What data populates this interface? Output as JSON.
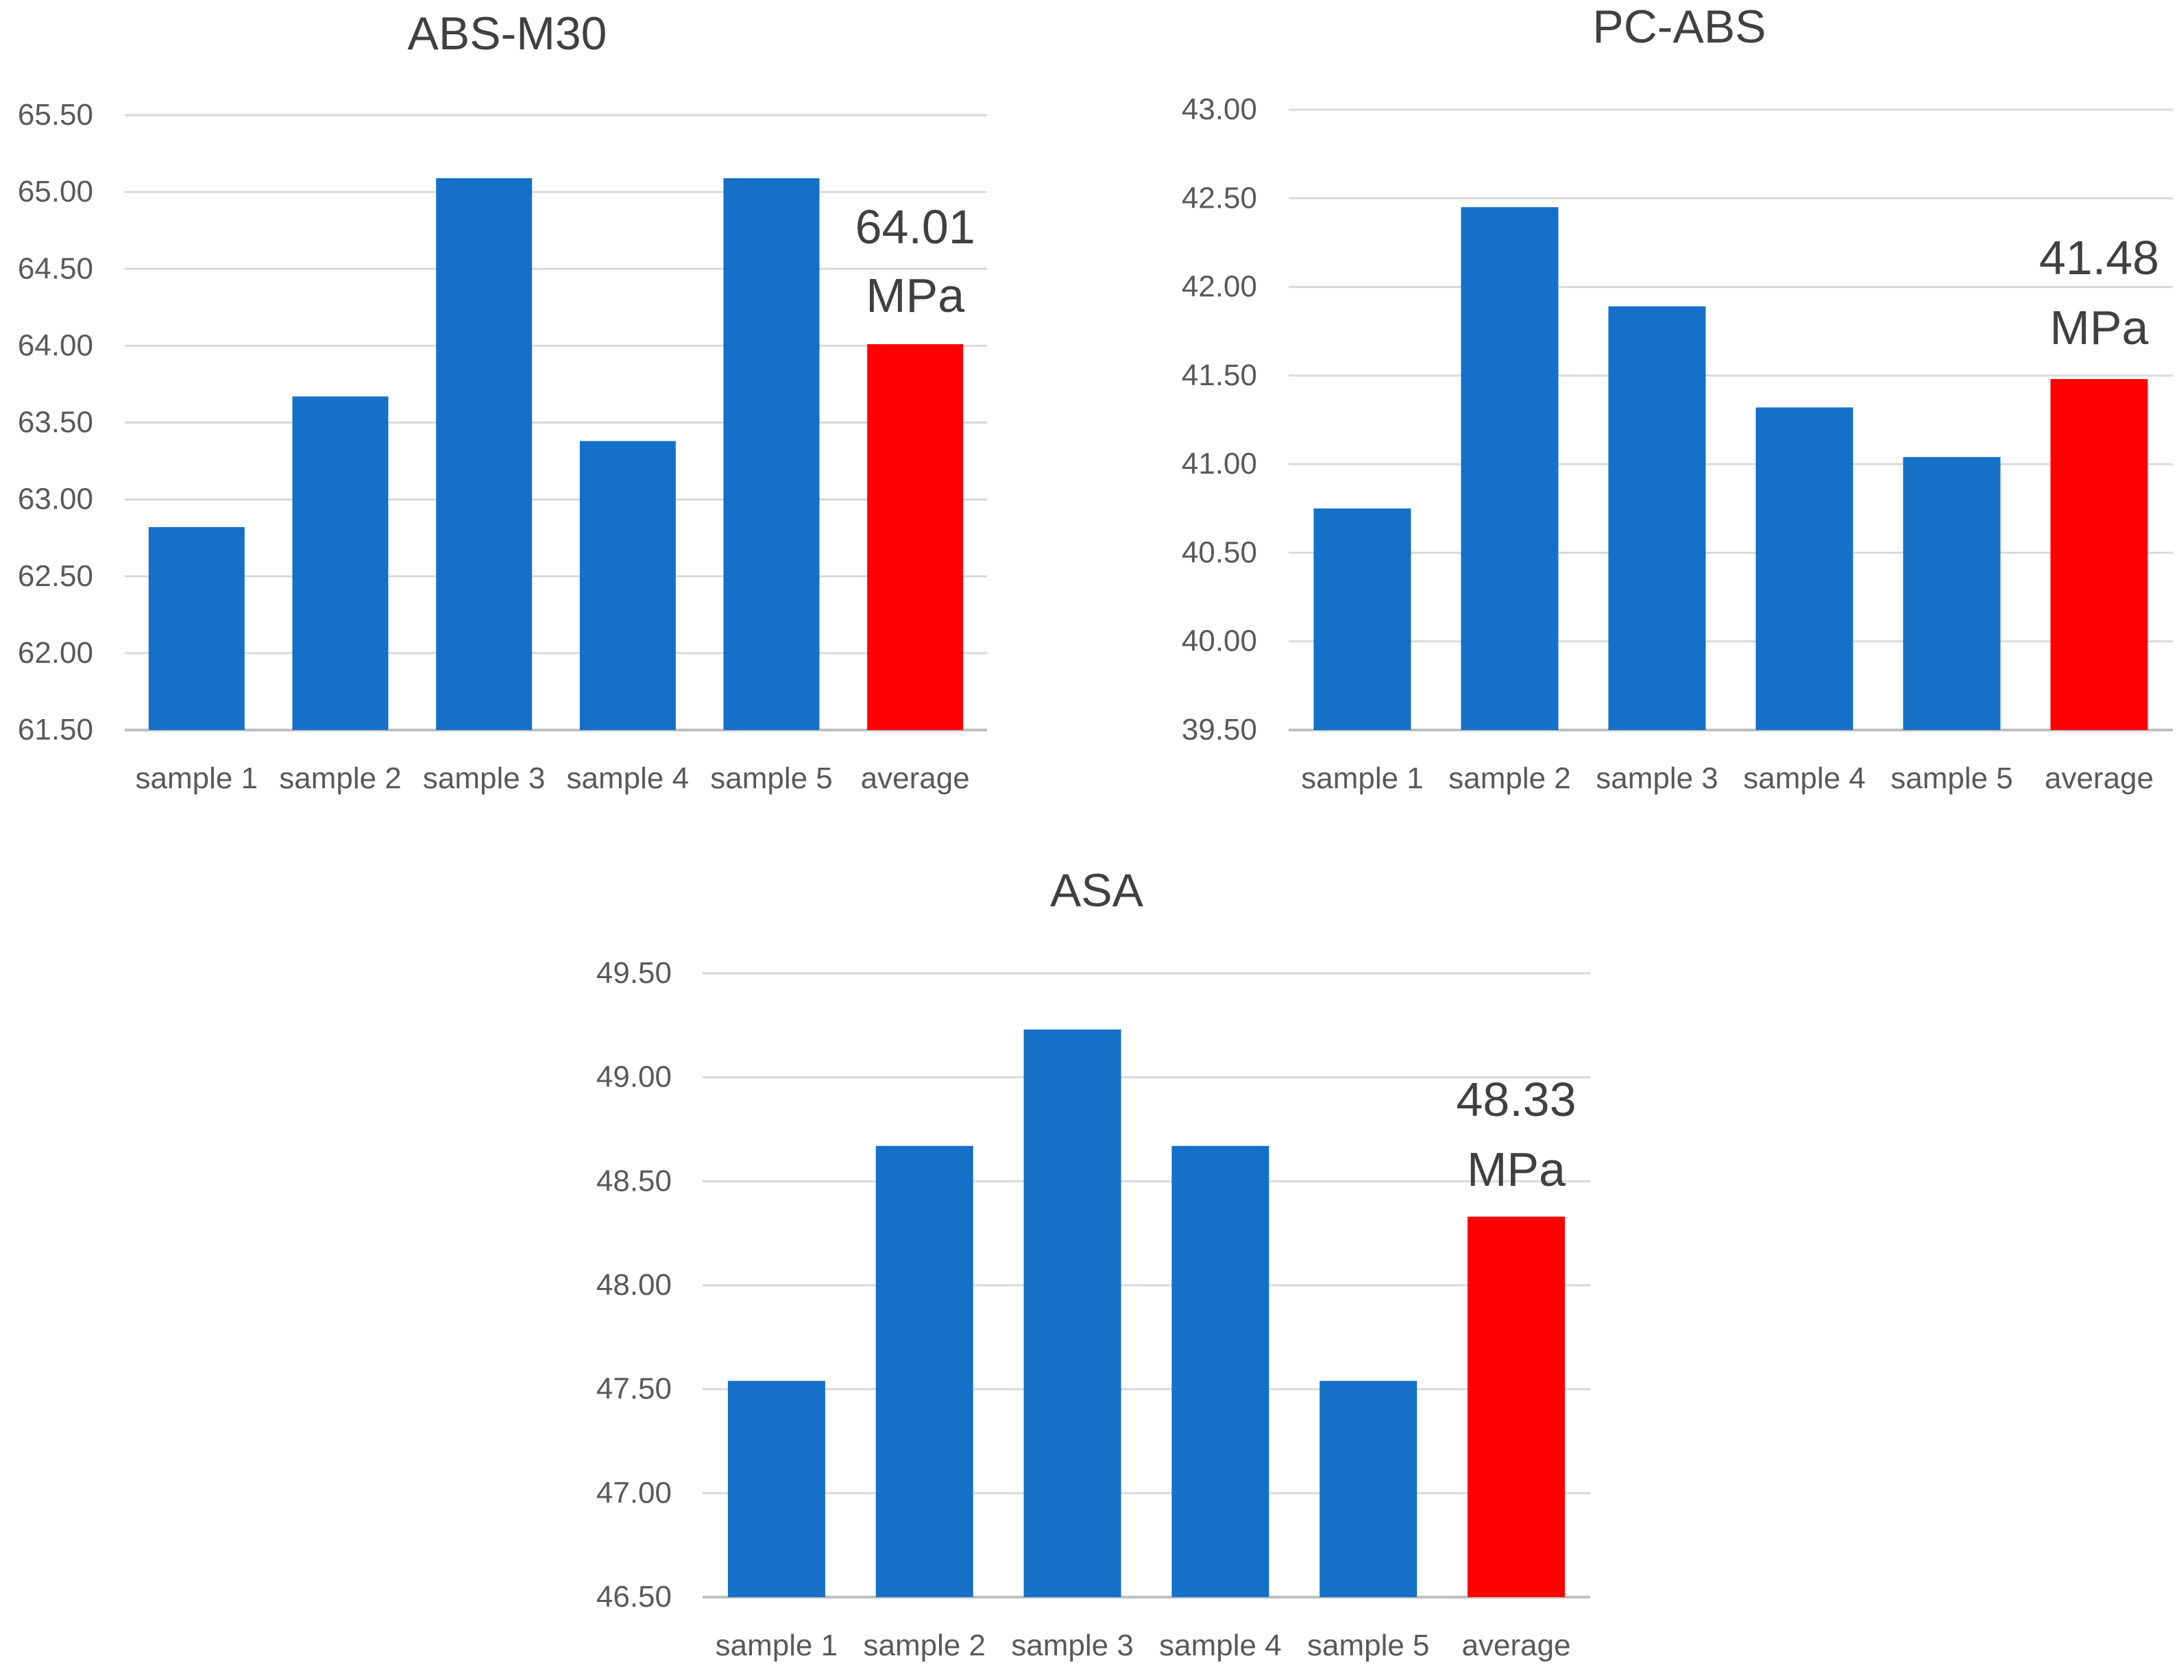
{
  "chart_data": [
    {
      "type": "bar",
      "title": "ABS-M30",
      "categories": [
        "sample 1",
        "sample 2",
        "sample 3",
        "sample 4",
        "sample 5",
        "average"
      ],
      "values": [
        62.82,
        63.67,
        65.09,
        63.38,
        65.09,
        64.01
      ],
      "ylim": [
        61.5,
        65.5
      ],
      "yticks": [
        "61.50",
        "62.00",
        "62.50",
        "63.00",
        "63.50",
        "64.00",
        "64.50",
        "65.00",
        "65.50"
      ],
      "xlabel": "",
      "ylabel": "",
      "grid": true,
      "annotation": {
        "value": "64.01",
        "unit": "MPa"
      }
    },
    {
      "type": "bar",
      "title": "PC-ABS",
      "categories": [
        "sample 1",
        "sample 2",
        "sample 3",
        "sample 4",
        "sample 5",
        "average"
      ],
      "values": [
        40.75,
        42.45,
        41.89,
        41.32,
        41.04,
        41.48
      ],
      "ylim": [
        39.5,
        43.0
      ],
      "yticks": [
        "39.50",
        "40.00",
        "40.50",
        "41.00",
        "41.50",
        "42.00",
        "42.50",
        "43.00"
      ],
      "xlabel": "",
      "ylabel": "",
      "grid": true,
      "annotation": {
        "value": "41.48",
        "unit": "MPa"
      }
    },
    {
      "type": "bar",
      "title": "ASA",
      "categories": [
        "sample 1",
        "sample 2",
        "sample 3",
        "sample 4",
        "sample 5",
        "average"
      ],
      "values": [
        47.54,
        48.67,
        49.23,
        48.67,
        47.54,
        48.33
      ],
      "ylim": [
        46.5,
        49.5
      ],
      "yticks": [
        "46.50",
        "47.00",
        "47.50",
        "48.00",
        "48.50",
        "49.00",
        "49.50"
      ],
      "xlabel": "",
      "ylabel": "",
      "grid": true,
      "annotation": {
        "value": "48.33",
        "unit": "MPa"
      }
    }
  ],
  "colors": {
    "bar": "#1570C8",
    "highlight": "#FF0000",
    "grid": "#D9D9D9",
    "axis": "#BFBFBF",
    "text": "#595959",
    "title": "#404040",
    "annotation": "#404040"
  }
}
